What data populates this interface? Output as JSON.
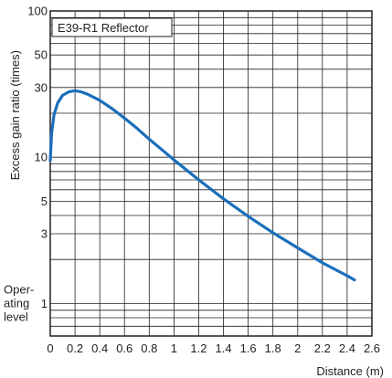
{
  "chart_data": {
    "type": "line",
    "title": "",
    "xlabel": "Distance (m)",
    "ylabel": "Excess gain ratio (times)",
    "x_scale": "linear",
    "y_scale": "log",
    "xlim": [
      0,
      2.6
    ],
    "ylim": [
      0.6,
      100
    ],
    "grid": true,
    "x_ticks": [
      {
        "value": 0,
        "label": "0"
      },
      {
        "value": 0.2,
        "label": "0.2"
      },
      {
        "value": 0.4,
        "label": "0.4"
      },
      {
        "value": 0.6,
        "label": "0.6"
      },
      {
        "value": 0.8,
        "label": "0.8"
      },
      {
        "value": 1,
        "label": "1"
      },
      {
        "value": 1.2,
        "label": "1.2"
      },
      {
        "value": 1.4,
        "label": "1.4"
      },
      {
        "value": 1.6,
        "label": "1.6"
      },
      {
        "value": 1.8,
        "label": "1.8"
      },
      {
        "value": 2,
        "label": "2"
      },
      {
        "value": 2.2,
        "label": "2.2"
      },
      {
        "value": 2.4,
        "label": "2.4"
      },
      {
        "value": 2.6,
        "label": "2.6"
      }
    ],
    "y_ticks": [
      {
        "value": 100,
        "label": "100"
      },
      {
        "value": 50,
        "label": "50"
      },
      {
        "value": 30,
        "label": "30"
      },
      {
        "value": 10,
        "label": "10"
      },
      {
        "value": 5,
        "label": "5"
      },
      {
        "value": 3,
        "label": "3"
      },
      {
        "value": 1,
        "label": "1"
      }
    ],
    "y_gridlines": [
      100,
      90,
      80,
      70,
      60,
      50,
      40,
      30,
      20,
      10,
      9,
      8,
      7,
      6,
      5,
      4,
      3,
      2,
      1,
      0.9,
      0.8,
      0.7,
      0.6
    ],
    "operating_level_label": [
      "Oper-",
      "ating",
      "level"
    ],
    "series": [
      {
        "name": "E39-R1 Reflector",
        "color": "#1a6fba",
        "x": [
          0.0,
          0.01,
          0.03,
          0.06,
          0.1,
          0.15,
          0.2,
          0.25,
          0.3,
          0.4,
          0.5,
          0.6,
          0.7,
          0.8,
          0.9,
          1.0,
          1.2,
          1.4,
          1.6,
          1.8,
          2.0,
          2.2,
          2.4,
          2.46
        ],
        "y": [
          9.5,
          14.5,
          19.5,
          23.5,
          26.5,
          28.0,
          28.5,
          28.0,
          27.0,
          24.5,
          21.5,
          18.5,
          15.8,
          13.3,
          11.3,
          9.6,
          7.0,
          5.2,
          3.95,
          3.05,
          2.4,
          1.9,
          1.55,
          1.45
        ]
      }
    ]
  }
}
